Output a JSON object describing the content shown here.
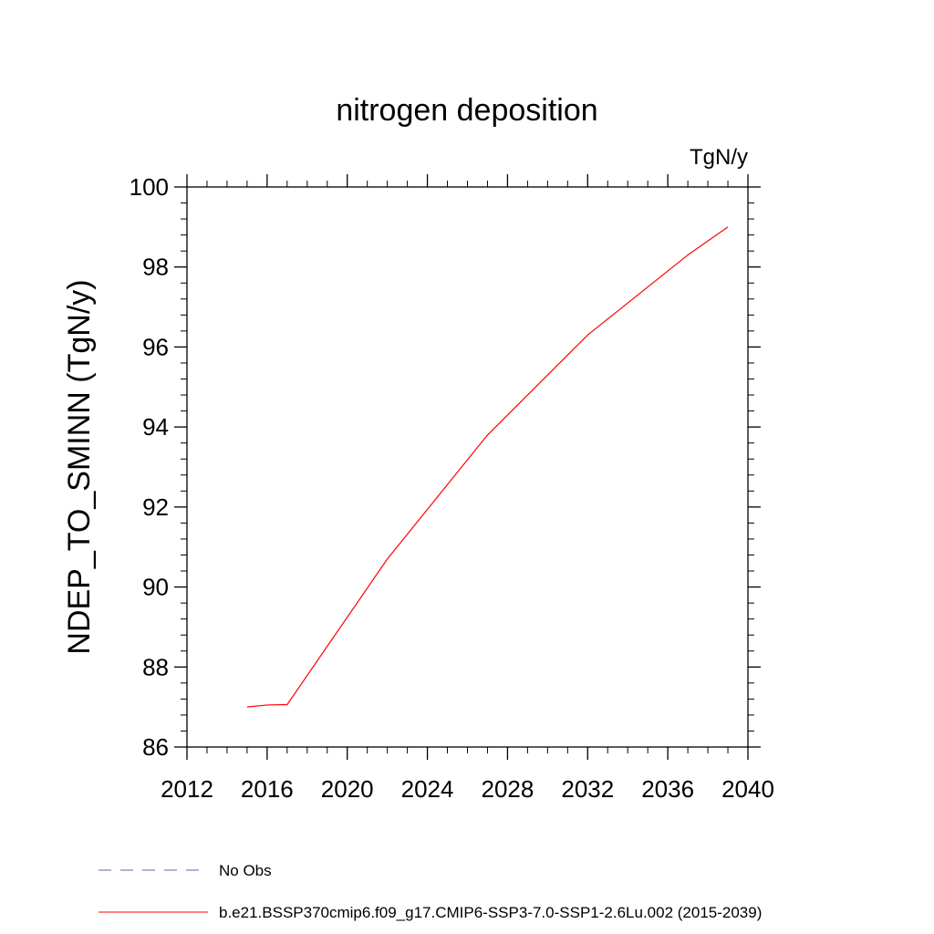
{
  "chart_data": {
    "type": "line",
    "title": "nitrogen deposition",
    "units_label": "TgN/y",
    "ylabel": "NDEP_TO_SMINN  (TgN/y)",
    "xlabel": "",
    "xlim": [
      2012,
      2040
    ],
    "ylim": [
      86,
      100
    ],
    "xticks": [
      2012,
      2016,
      2020,
      2024,
      2028,
      2032,
      2036,
      2040
    ],
    "yticks": [
      86,
      88,
      90,
      92,
      94,
      96,
      98,
      100
    ],
    "grid": false,
    "legend_position": "bottom",
    "series": [
      {
        "name": "No Obs",
        "color": "#6e5fa8",
        "dash": "dashed",
        "x": [],
        "y": []
      },
      {
        "name": "b.e21.BSSP370cmip6.f09_g17.CMIP6-SSP3-7.0-SSP1-2.6Lu.002 (2015-2039)",
        "color": "#ff0000",
        "dash": "solid",
        "x": [
          2015,
          2016,
          2017,
          2022,
          2027,
          2032,
          2037,
          2039
        ],
        "y": [
          87.0,
          87.05,
          87.06,
          90.7,
          93.8,
          96.3,
          98.3,
          99.0
        ]
      }
    ]
  }
}
